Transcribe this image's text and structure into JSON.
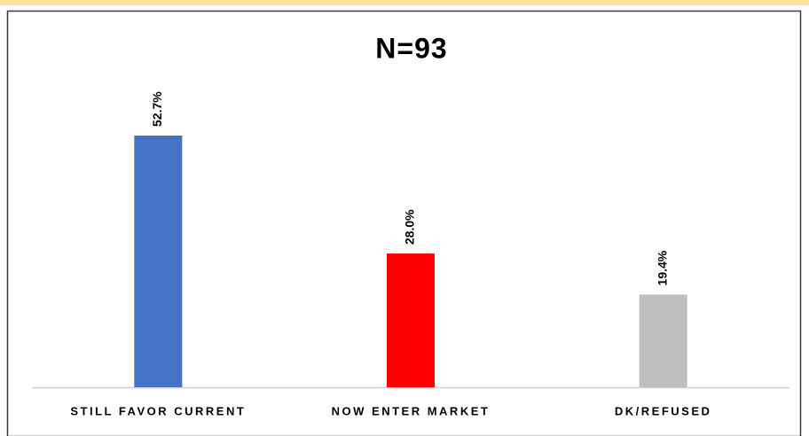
{
  "chart_data": {
    "type": "bar",
    "title": "N=93",
    "categories": [
      "STILL FAVOR CURRENT",
      "NOW ENTER MARKET",
      "DK/REFUSED"
    ],
    "values": [
      52.7,
      28.0,
      19.4
    ],
    "value_labels": [
      "52.7%",
      "28.0%",
      "19.4%"
    ],
    "colors": [
      "#4472c4",
      "#ff0000",
      "#bfbfbf"
    ]
  }
}
